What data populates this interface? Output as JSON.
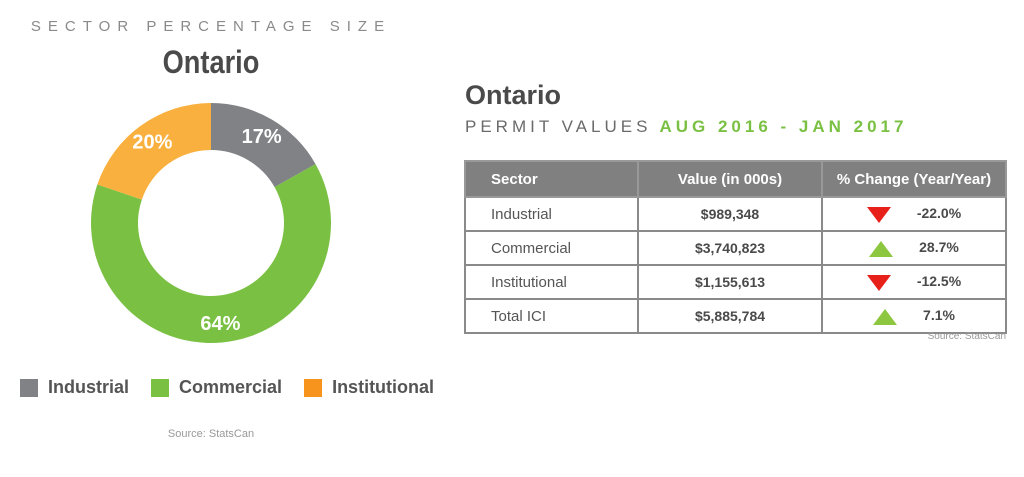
{
  "left": {
    "kicker": "SECTOR PERCENTAGE SIZE",
    "title": "Ontario",
    "source": "Source: StatsCan"
  },
  "chart_data": {
    "type": "pie",
    "style": "donut",
    "title": "Ontario",
    "categories": [
      "Industrial",
      "Commercial",
      "Institutional"
    ],
    "values": [
      17,
      64,
      20
    ],
    "labels": [
      "17%",
      "64%",
      "20%"
    ],
    "colors": [
      "#808285",
      "#7ac143",
      "#f9b03e"
    ],
    "legend_colors": [
      "#808285",
      "#7ac143",
      "#f7941d"
    ],
    "legend": "bottom"
  },
  "right": {
    "title": "Ontario",
    "subtitle": "PERMIT VALUES",
    "dates": "AUG 2016 - JAN 2017",
    "headers": [
      "Sector",
      "Value (in 000s)",
      "% Change (Year/Year)"
    ],
    "rows": [
      {
        "sector": "Industrial",
        "value": "$989,348",
        "change": "-22.0%",
        "direction": "down"
      },
      {
        "sector": "Commercial",
        "value": "$3,740,823",
        "change": "28.7%",
        "direction": "up"
      },
      {
        "sector": "Institutional",
        "value": "$1,155,613",
        "change": "-12.5%",
        "direction": "down"
      },
      {
        "sector": "Total ICI",
        "value": "$5,885,784",
        "change": "7.1%",
        "direction": "up"
      }
    ],
    "source": "Source: StatsCan"
  }
}
